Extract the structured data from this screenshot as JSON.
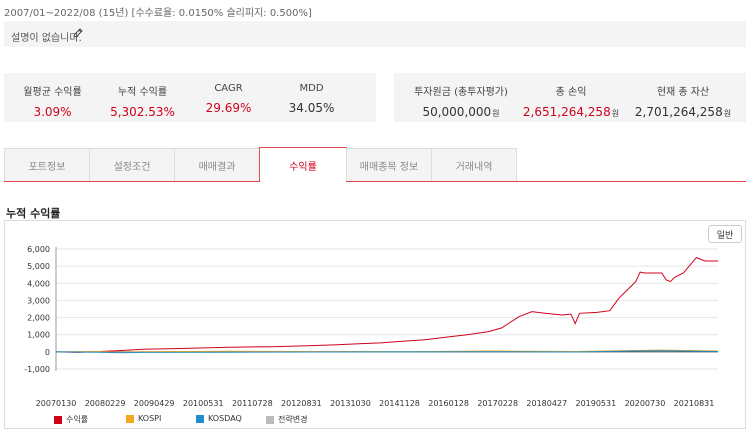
{
  "header": {
    "period": "2007/01~2022/08 (15년) [수수료율: 0.0150% 슬리피지: 0.500%]",
    "description": "설명이 없습니다."
  },
  "stats": [
    {
      "label": "월평균 수익률",
      "value": "3.09%",
      "highlight": true
    },
    {
      "label": "누적 수익률",
      "value": "5,302.53%",
      "highlight": true
    },
    {
      "label": "CAGR",
      "value": "29.69%",
      "highlight": true
    },
    {
      "label": "MDD",
      "value": "34.05%",
      "highlight": false
    }
  ],
  "money": [
    {
      "label": "투자원금 (총투자평가)",
      "value": "50,000,000",
      "unit": "원",
      "highlight": false
    },
    {
      "label": "총 손익",
      "value": "2,651,264,258",
      "unit": "원",
      "highlight": true
    },
    {
      "label": "현재 총 자산",
      "value": "2,701,264,258",
      "unit": "원",
      "highlight": false
    }
  ],
  "tabs": [
    "포트정보",
    "설정조건",
    "매매결과",
    "수익률",
    "매매종목 정보",
    "거래내역"
  ],
  "active_tab": "수익률",
  "section_title": "누적 수익률",
  "chart_mode_button": "일반",
  "colors": {
    "accent": "#d0021b",
    "kospi": "#f5a623",
    "kosdaq": "#1f8ec9",
    "strategy_change": "#bbbbbb"
  },
  "chart_data": {
    "type": "line",
    "ylim": [
      -1000,
      6000
    ],
    "yticks": [
      "-1,000",
      "0",
      "1,000",
      "2,000",
      "3,000",
      "4,000",
      "5,000",
      "6,000"
    ],
    "ytick_values": [
      -1000,
      0,
      1000,
      2000,
      3000,
      4000,
      5000,
      6000
    ],
    "x_labels": [
      "20070130",
      "20080229",
      "20090429",
      "20100531",
      "20110728",
      "20120831",
      "20131030",
      "20141128",
      "20160128",
      "20170228",
      "20180427",
      "20190531",
      "20200730",
      "20210831"
    ],
    "legend": [
      "수익률",
      "KOSPI",
      "KOSDAQ",
      "전략변경"
    ],
    "series": [
      {
        "name": "수익률",
        "color": "#d0021b",
        "values": [
          [
            0,
            0
          ],
          [
            0.5,
            -30
          ],
          [
            1,
            20
          ],
          [
            1.4,
            60
          ],
          [
            2,
            150
          ],
          [
            3,
            200
          ],
          [
            4,
            270
          ],
          [
            5,
            300
          ],
          [
            6,
            370
          ],
          [
            6.5,
            420
          ],
          [
            7,
            470
          ],
          [
            7.5,
            520
          ],
          [
            8,
            620
          ],
          [
            8.5,
            700
          ],
          [
            9,
            850
          ],
          [
            9.5,
            1000
          ],
          [
            10,
            1180
          ],
          [
            10.3,
            1400
          ],
          [
            10.7,
            2050
          ],
          [
            11,
            2350
          ],
          [
            11.3,
            2250
          ],
          [
            11.7,
            2150
          ],
          [
            11.9,
            2200
          ],
          [
            12,
            1650
          ],
          [
            12.1,
            2250
          ],
          [
            12.5,
            2300
          ],
          [
            12.8,
            2400
          ],
          [
            13,
            3100
          ],
          [
            13.2,
            3600
          ],
          [
            13.4,
            4100
          ],
          [
            13.5,
            4650
          ],
          [
            13.6,
            4600
          ],
          [
            14,
            4600
          ],
          [
            14.1,
            4200
          ],
          [
            14.2,
            4100
          ],
          [
            14.3,
            4350
          ],
          [
            14.5,
            4600
          ],
          [
            14.8,
            5500
          ],
          [
            15,
            5300
          ],
          [
            15.3,
            5300
          ]
        ]
      },
      {
        "name": "KOSPI",
        "color": "#f5a623",
        "values": [
          [
            0,
            0
          ],
          [
            1,
            20
          ],
          [
            1.5,
            -30
          ],
          [
            2,
            10
          ],
          [
            4,
            30
          ],
          [
            6,
            20
          ],
          [
            8,
            10
          ],
          [
            10,
            50
          ],
          [
            12,
            20
          ],
          [
            13,
            60
          ],
          [
            14,
            100
          ],
          [
            15.3,
            50
          ]
        ]
      },
      {
        "name": "KOSDAQ",
        "color": "#1f8ec9",
        "values": [
          [
            0,
            0
          ],
          [
            1,
            -20
          ],
          [
            1.5,
            -50
          ],
          [
            2,
            -30
          ],
          [
            4,
            -20
          ],
          [
            6,
            -10
          ],
          [
            8,
            0
          ],
          [
            10,
            10
          ],
          [
            12,
            -10
          ],
          [
            13,
            40
          ],
          [
            14,
            70
          ],
          [
            15.3,
            20
          ]
        ]
      }
    ]
  }
}
